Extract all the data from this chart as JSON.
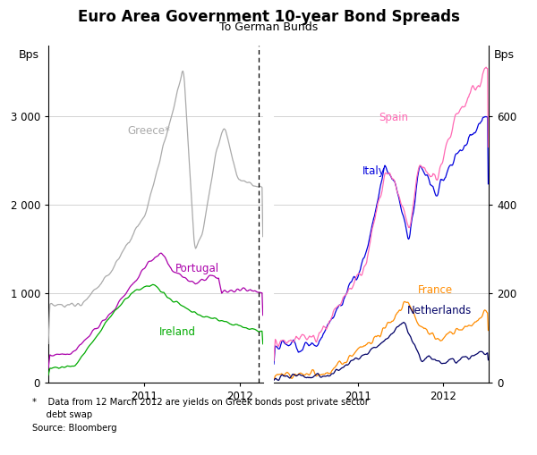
{
  "title": "Euro Area Government 10-year Bond Spreads",
  "subtitle": "To German Bunds",
  "ylabel_left": "Bps",
  "ylabel_right": "Bps",
  "footnote1": "*    Data from 12 March 2012 are yields on Greek bonds post private sector",
  "footnote2": "     debt swap",
  "footnote3": "Source: Bloomberg",
  "left_ylim": [
    0,
    3800
  ],
  "right_ylim": [
    0,
    760
  ],
  "left_yticks": [
    0,
    1000,
    2000,
    3000
  ],
  "right_yticks": [
    0,
    200,
    400,
    600
  ],
  "left_ytick_labels": [
    "0",
    "1 000",
    "2 000",
    "3 000"
  ],
  "right_ytick_labels": [
    "0",
    "200",
    "400",
    "600"
  ],
  "colors": {
    "greece": "#aaaaaa",
    "portugal": "#aa00aa",
    "ireland": "#00aa00",
    "italy": "#0000dd",
    "spain": "#ff69b4",
    "france": "#ff8c00",
    "netherlands": "#000066"
  },
  "background": "#ffffff",
  "grid_color": "#cccccc"
}
